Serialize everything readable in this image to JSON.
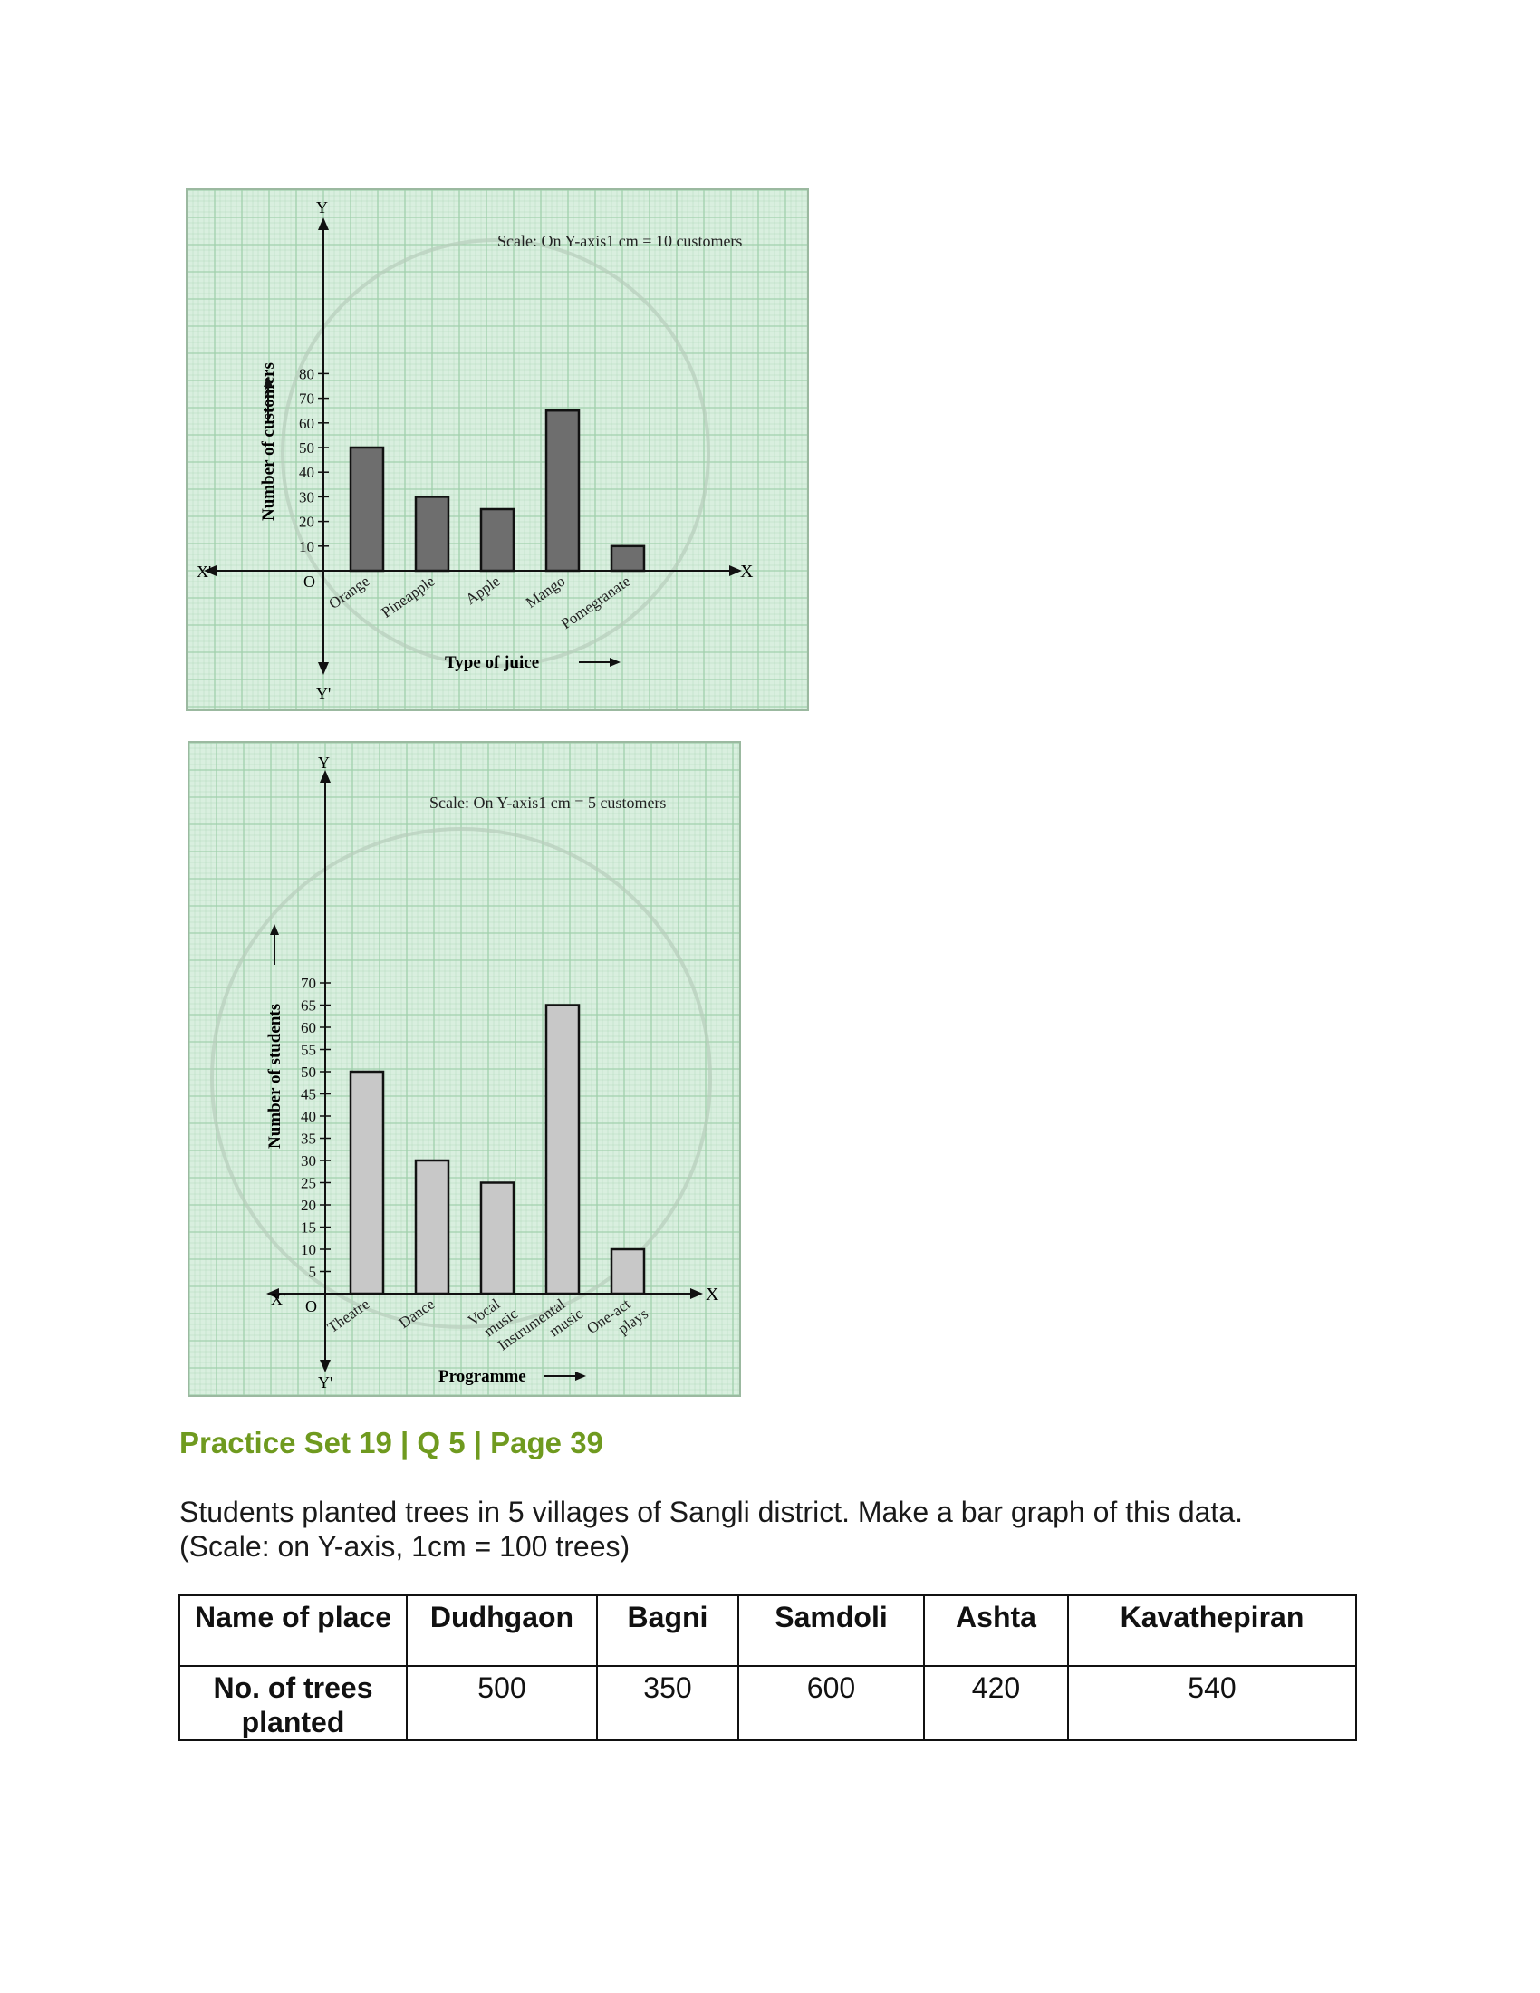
{
  "graphs": [
    {
      "chart_data": {
        "type": "bar",
        "categories": [
          "Orange",
          "Pineapple",
          "Apple",
          "Mango",
          "Pomegranate"
        ],
        "values": [
          50,
          30,
          25,
          65,
          10
        ],
        "xlabel": "Type of juice",
        "ylabel": "Number of customers",
        "ylim": [
          0,
          80
        ],
        "yticks": [
          10,
          20,
          30,
          40,
          50,
          60,
          70,
          80
        ],
        "grid": true,
        "bar_color": "#6e6e6e"
      },
      "scale_note": "Scale: On Y-axis1 cm = 10 customers",
      "axis": {
        "x": "X",
        "x_neg": "X'",
        "y": "Y",
        "y_neg": "Y'",
        "origin": "O"
      }
    },
    {
      "chart_data": {
        "type": "bar",
        "categories": [
          "Theatre",
          "Dance",
          "Vocal music",
          "Instrumental music",
          "One-act plays"
        ],
        "values": [
          50,
          30,
          25,
          65,
          10
        ],
        "xlabel": "Programme",
        "ylabel": "Number of students",
        "ylim": [
          0,
          70
        ],
        "yticks": [
          5,
          10,
          15,
          20,
          25,
          30,
          35,
          40,
          45,
          50,
          55,
          60,
          65,
          70
        ],
        "grid": true,
        "bar_color": "#c8c8c8"
      },
      "scale_note": "Scale: On Y-axis1 cm = 5 customers",
      "axis": {
        "x": "X",
        "x_neg": "X'",
        "y": "Y",
        "y_neg": "Y'",
        "origin": "O"
      }
    }
  ],
  "heading": "Practice Set 19 | Q 5 | Page 39",
  "question": {
    "line1": "Students planted trees in 5 villages of Sangli district. Make a bar graph of this data.",
    "line2": "(Scale: on Y-axis, 1cm = 100 trees)"
  },
  "table": {
    "row1": {
      "label": "Name of place",
      "cells": [
        "Dudhgaon",
        "Bagni",
        "Samdoli",
        "Ashta",
        "Kavathepiran"
      ]
    },
    "row2": {
      "label": "No. of trees planted",
      "cells": [
        "500",
        "350",
        "600",
        "420",
        "540"
      ]
    }
  },
  "colors": {
    "heading": "#6f9a1f",
    "graph_paper": "#d9efdf",
    "grid_line": "#9fcfaa"
  }
}
